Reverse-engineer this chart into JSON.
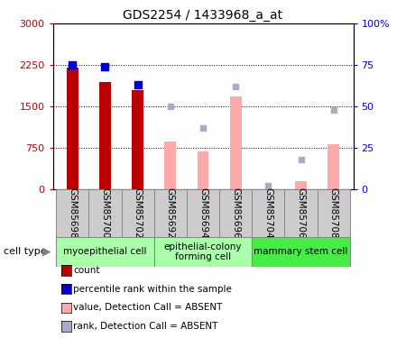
{
  "title": "GDS2254 / 1433968_a_at",
  "samples": [
    "GSM85698",
    "GSM85700",
    "GSM85702",
    "GSM85692",
    "GSM85694",
    "GSM85696",
    "GSM85704",
    "GSM85706",
    "GSM85708"
  ],
  "bar_count_values": [
    2200,
    1950,
    1800,
    null,
    null,
    null,
    null,
    null,
    null
  ],
  "bar_rank_values": [
    75,
    74,
    63,
    null,
    null,
    null,
    null,
    null,
    null
  ],
  "bar_absent_value": [
    null,
    null,
    null,
    870,
    680,
    1680,
    null,
    145,
    820
  ],
  "bar_absent_rank": [
    null,
    null,
    null,
    50,
    37,
    62,
    2,
    18,
    48
  ],
  "ylim_left": [
    0,
    3000
  ],
  "ylim_right": [
    0,
    100
  ],
  "yticks_left": [
    0,
    750,
    1500,
    2250,
    3000
  ],
  "ytick_labels_left": [
    "0",
    "750",
    "1500",
    "2250",
    "3000"
  ],
  "yticks_right": [
    0,
    25,
    50,
    75,
    100
  ],
  "ytick_labels_right": [
    "0",
    "25",
    "50",
    "75",
    "100%"
  ],
  "count_color": "#bb0000",
  "rank_color": "#0000cc",
  "absent_value_color": "#ffaaaa",
  "absent_rank_color": "#aaaacc",
  "bar_width": 0.35,
  "cell_type_regions": [
    {
      "label": "myoepithelial cell",
      "start": 0,
      "end": 2,
      "color": "#aaffaa"
    },
    {
      "label": "epithelial-colony\nforming cell",
      "start": 3,
      "end": 5,
      "color": "#aaffaa"
    },
    {
      "label": "mammary stem cell",
      "start": 6,
      "end": 8,
      "color": "#44ee44"
    }
  ],
  "legend_items": [
    {
      "label": "count",
      "color": "#bb0000"
    },
    {
      "label": "percentile rank within the sample",
      "color": "#0000cc"
    },
    {
      "label": "value, Detection Call = ABSENT",
      "color": "#ffaaaa"
    },
    {
      "label": "rank, Detection Call = ABSENT",
      "color": "#aaaacc"
    }
  ]
}
